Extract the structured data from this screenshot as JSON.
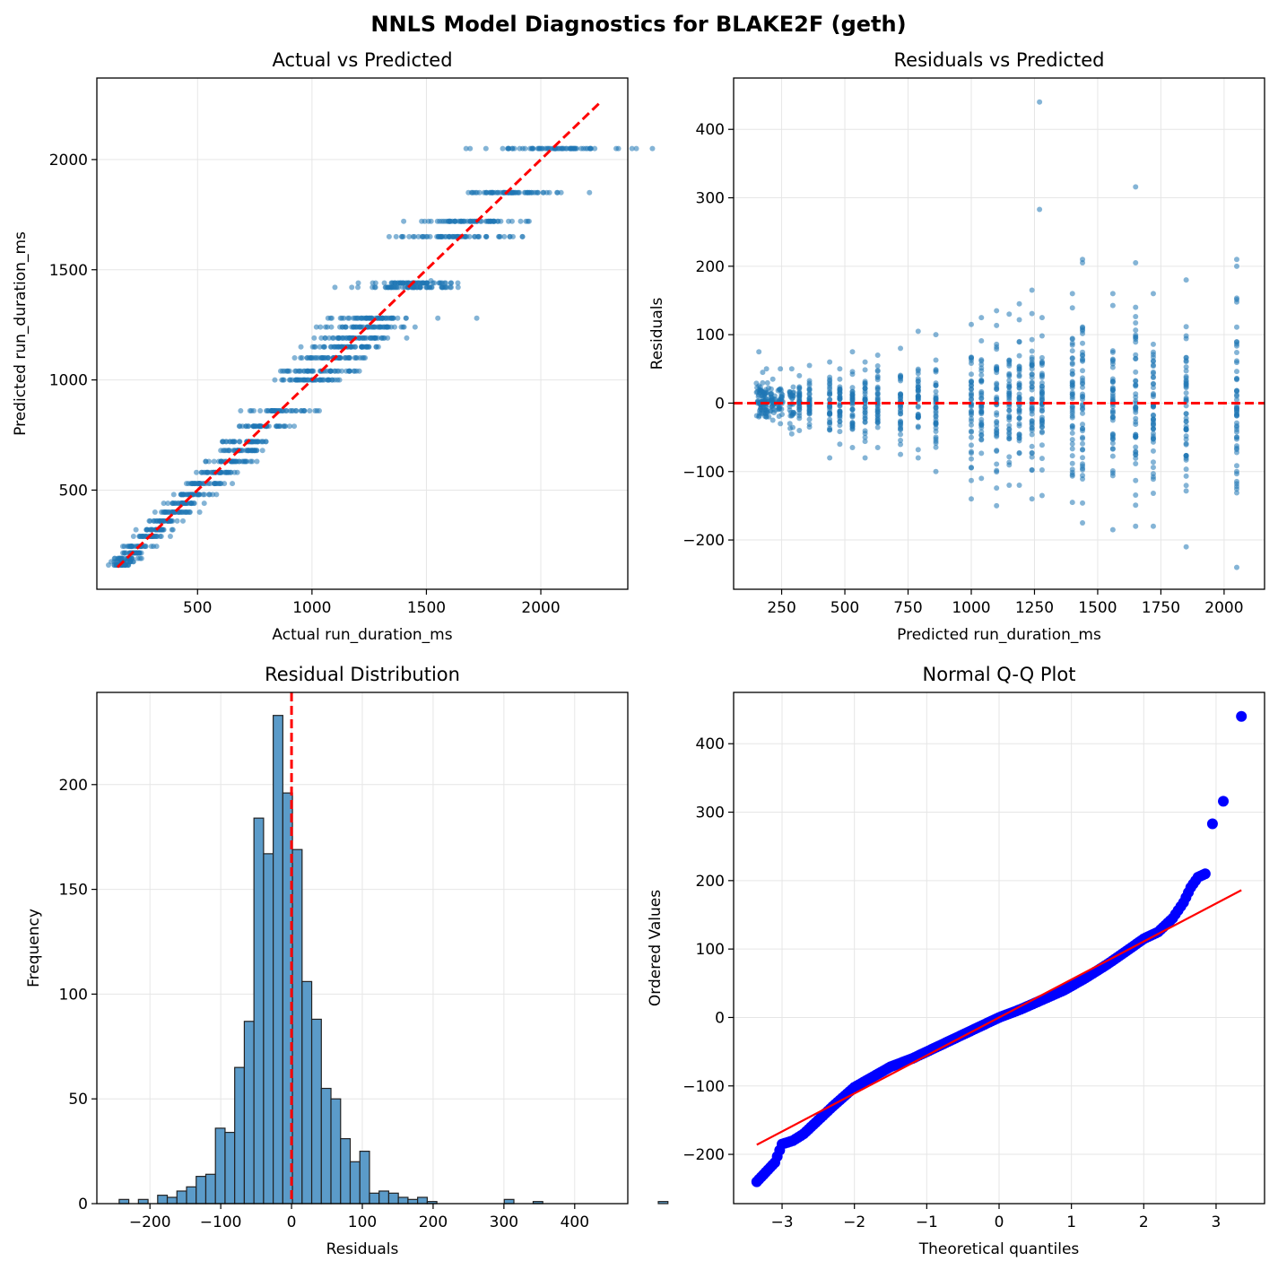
{
  "figure": {
    "suptitle": "NNLS Model Diagnostics for BLAKE2F (geth)"
  },
  "colors": {
    "scatter": "#1f77b4",
    "reference_line": "#ff0000",
    "qq_points": "#0000ff",
    "hist_fill": "#5b9bc9",
    "grid": "#e6e6e6"
  },
  "chart_data": [
    {
      "id": "actual_vs_predicted",
      "type": "scatter",
      "title": "Actual vs Predicted",
      "xlabel": "Actual run_duration_ms",
      "ylabel": "Predicted run_duration_ms",
      "xlim": [
        60,
        2380
      ],
      "ylim": [
        50,
        2370
      ],
      "xticks": [
        500,
        1000,
        1500,
        2000
      ],
      "yticks": [
        500,
        1000,
        1500,
        2000
      ],
      "grid": true,
      "reference_line": {
        "style": "dashed",
        "x": [
          150,
          2260
        ],
        "y": [
          150,
          2260
        ]
      },
      "predicted_levels": [
        160,
        175,
        190,
        215,
        245,
        290,
        320,
        360,
        400,
        440,
        480,
        530,
        580,
        630,
        680,
        720,
        790,
        860,
        1000,
        1040,
        1100,
        1150,
        1190,
        1240,
        1280,
        1420,
        1440,
        1650,
        1720,
        1850,
        2050
      ],
      "outliers": [
        [
          1550,
          1280
        ],
        [
          1720,
          1280
        ],
        [
          1920,
          1650
        ],
        [
          1520,
          1450
        ]
      ]
    },
    {
      "id": "residuals_vs_predicted",
      "type": "scatter",
      "title": "Residuals vs Predicted",
      "xlabel": "Predicted run_duration_ms",
      "ylabel": "Residuals",
      "xlim": [
        60,
        2160
      ],
      "ylim": [
        -272,
        475
      ],
      "xticks": [
        250,
        500,
        750,
        1000,
        1250,
        1500,
        1750,
        2000
      ],
      "yticks": [
        -200,
        -100,
        0,
        100,
        200,
        300,
        400
      ],
      "grid": true,
      "reference_line": {
        "style": "dashed",
        "y": 0
      },
      "columns": [
        {
          "x": 160,
          "lo": -20,
          "hi": 75
        },
        {
          "x": 175,
          "lo": -15,
          "hi": 45
        },
        {
          "x": 190,
          "lo": -20,
          "hi": 50
        },
        {
          "x": 215,
          "lo": -25,
          "hi": 35
        },
        {
          "x": 245,
          "lo": -30,
          "hi": 50
        },
        {
          "x": 290,
          "lo": -45,
          "hi": 50
        },
        {
          "x": 320,
          "lo": -40,
          "hi": 40
        },
        {
          "x": 360,
          "lo": -35,
          "hi": 55
        },
        {
          "x": 440,
          "lo": -80,
          "hi": 60
        },
        {
          "x": 480,
          "lo": -60,
          "hi": 50
        },
        {
          "x": 530,
          "lo": -65,
          "hi": 75
        },
        {
          "x": 580,
          "lo": -80,
          "hi": 60
        },
        {
          "x": 630,
          "lo": -65,
          "hi": 70
        },
        {
          "x": 720,
          "lo": -75,
          "hi": 80
        },
        {
          "x": 790,
          "lo": -80,
          "hi": 105
        },
        {
          "x": 860,
          "lo": -100,
          "hi": 100
        },
        {
          "x": 1000,
          "lo": -140,
          "hi": 115
        },
        {
          "x": 1040,
          "lo": -110,
          "hi": 125
        },
        {
          "x": 1100,
          "lo": -150,
          "hi": 135
        },
        {
          "x": 1150,
          "lo": -120,
          "hi": 130
        },
        {
          "x": 1190,
          "lo": -120,
          "hi": 145
        },
        {
          "x": 1240,
          "lo": -140,
          "hi": 165
        },
        {
          "x": 1280,
          "lo": -135,
          "hi": 125
        },
        {
          "x": 1400,
          "lo": -145,
          "hi": 160
        },
        {
          "x": 1440,
          "lo": -175,
          "hi": 205
        },
        {
          "x": 1560,
          "lo": -185,
          "hi": 160
        },
        {
          "x": 1650,
          "lo": -180,
          "hi": 140
        },
        {
          "x": 1720,
          "lo": -180,
          "hi": 160
        },
        {
          "x": 1850,
          "lo": -210,
          "hi": 180
        },
        {
          "x": 2050,
          "lo": -240,
          "hi": 210
        }
      ],
      "outliers": [
        [
          1270,
          440
        ],
        [
          1270,
          283
        ],
        [
          1650,
          316
        ],
        [
          1650,
          205
        ],
        [
          1440,
          210
        ],
        [
          2050,
          200
        ]
      ]
    },
    {
      "id": "residual_distribution",
      "type": "bar",
      "title": "Residual Distribution",
      "xlabel": "Residuals",
      "ylabel": "Frequency",
      "xlim": [
        -275,
        475
      ],
      "ylim": [
        0,
        244
      ],
      "xticks": [
        -200,
        -100,
        0,
        100,
        200,
        300,
        400
      ],
      "yticks": [
        0,
        50,
        100,
        150,
        200
      ],
      "grid": true,
      "reference_line": {
        "style": "dashed",
        "x": 0
      },
      "bin_start": -243.5,
      "bin_width": 13.6,
      "counts": [
        2,
        0,
        2,
        0,
        4,
        3,
        6,
        8,
        13,
        14,
        36,
        34,
        65,
        87,
        184,
        167,
        233,
        196,
        169,
        106,
        88,
        55,
        50,
        31,
        20,
        25,
        5,
        6,
        5,
        3,
        2,
        3,
        1,
        0,
        0,
        0,
        0,
        0,
        0,
        0,
        2,
        0,
        0,
        1,
        0,
        0,
        0,
        0,
        0,
        0,
        0,
        0,
        0,
        0,
        0,
        0,
        1,
        0
      ]
    },
    {
      "id": "normal_qq_plot",
      "type": "scatter",
      "title": "Normal Q-Q Plot",
      "xlabel": "Theoretical quantiles",
      "ylabel": "Ordered Values",
      "xlim": [
        -3.67,
        3.67
      ],
      "ylim": [
        -272,
        475
      ],
      "xticks": [
        -3,
        -2,
        -1,
        0,
        1,
        2,
        3
      ],
      "yticks": [
        -200,
        -100,
        0,
        100,
        200,
        300,
        400
      ],
      "grid": true,
      "fit_line": {
        "x": [
          -3.35,
          3.35
        ],
        "y": [
          -186,
          186
        ]
      },
      "curve": [
        [
          -3.35,
          -240
        ],
        [
          -3.1,
          -212
        ],
        [
          -3.0,
          -185
        ],
        [
          -2.85,
          -180
        ],
        [
          -2.7,
          -170
        ],
        [
          -2.5,
          -150
        ],
        [
          -2.3,
          -130
        ],
        [
          -2.0,
          -102
        ],
        [
          -1.8,
          -90
        ],
        [
          -1.5,
          -72
        ],
        [
          -1.2,
          -60
        ],
        [
          -0.9,
          -45
        ],
        [
          -0.6,
          -30
        ],
        [
          -0.3,
          -15
        ],
        [
          0.0,
          0
        ],
        [
          0.3,
          12
        ],
        [
          0.6,
          26
        ],
        [
          0.9,
          40
        ],
        [
          1.2,
          58
        ],
        [
          1.5,
          78
        ],
        [
          1.8,
          100
        ],
        [
          2.0,
          115
        ],
        [
          2.2,
          125
        ],
        [
          2.4,
          145
        ],
        [
          2.55,
          168
        ],
        [
          2.65,
          190
        ],
        [
          2.75,
          205
        ],
        [
          2.85,
          210
        ]
      ],
      "outliers": [
        [
          2.95,
          283
        ],
        [
          3.1,
          316
        ],
        [
          3.35,
          440
        ]
      ]
    }
  ]
}
